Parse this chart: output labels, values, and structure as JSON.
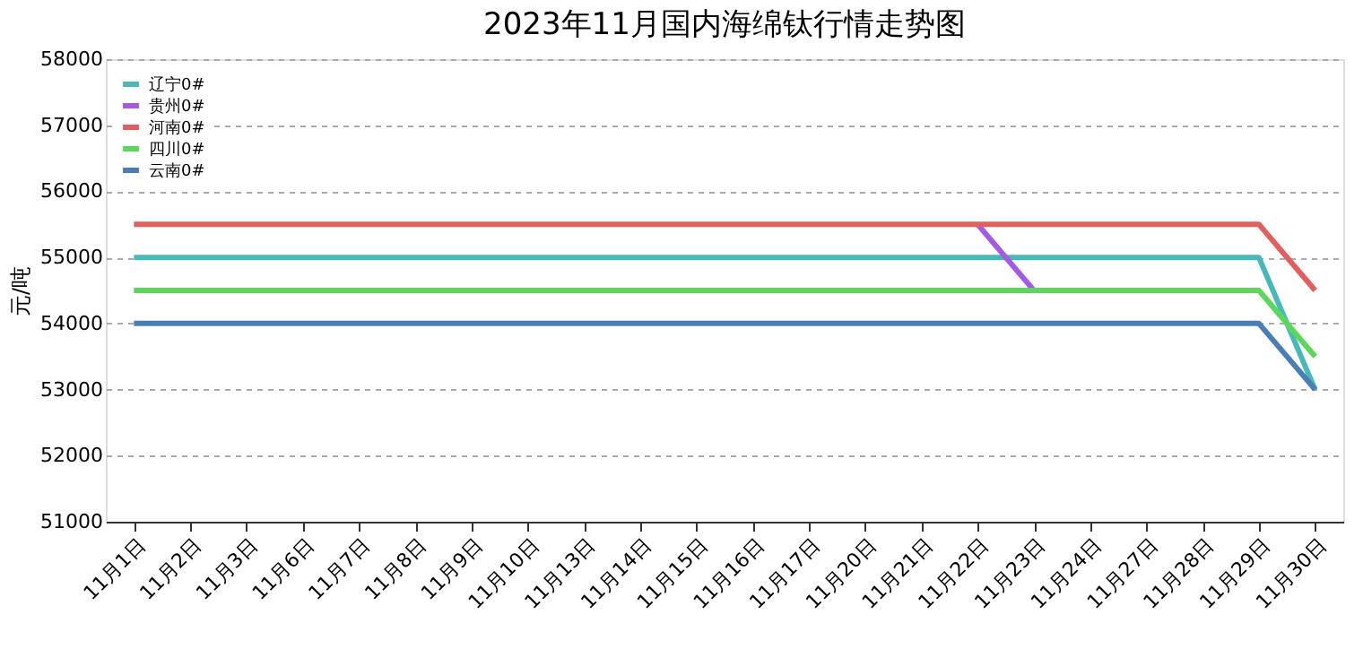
{
  "chart_data": {
    "type": "line",
    "title": "2023年11月国内海绵钛行情走势图",
    "ylabel": "元/吨",
    "categories": [
      "11月1日",
      "11月2日",
      "11月3日",
      "11月6日",
      "11月7日",
      "11月8日",
      "11月9日",
      "11月10日",
      "11月13日",
      "11月14日",
      "11月15日",
      "11月16日",
      "11月17日",
      "11月20日",
      "11月21日",
      "11月22日",
      "11月23日",
      "11月24日",
      "11月27日",
      "11月28日",
      "11月29日",
      "11月30日"
    ],
    "series": [
      {
        "name": "辽宁0#",
        "color": "#4bb8b8",
        "values": [
          55000,
          55000,
          55000,
          55000,
          55000,
          55000,
          55000,
          55000,
          55000,
          55000,
          55000,
          55000,
          55000,
          55000,
          55000,
          55000,
          55000,
          55000,
          55000,
          55000,
          55000,
          53000
        ]
      },
      {
        "name": "贵州0#",
        "color": "#a35ce0",
        "values": [
          null,
          null,
          null,
          null,
          null,
          null,
          null,
          null,
          null,
          null,
          null,
          null,
          null,
          null,
          null,
          55500,
          54500,
          null,
          null,
          null,
          null,
          null
        ]
      },
      {
        "name": "河南0#",
        "color": "#e06060",
        "values": [
          55500,
          55500,
          55500,
          55500,
          55500,
          55500,
          55500,
          55500,
          55500,
          55500,
          55500,
          55500,
          55500,
          55500,
          55500,
          55500,
          55500,
          55500,
          55500,
          55500,
          55500,
          54500
        ]
      },
      {
        "name": "四川0#",
        "color": "#5cd65c",
        "values": [
          54500,
          54500,
          54500,
          54500,
          54500,
          54500,
          54500,
          54500,
          54500,
          54500,
          54500,
          54500,
          54500,
          54500,
          54500,
          54500,
          54500,
          54500,
          54500,
          54500,
          54500,
          53500
        ]
      },
      {
        "name": "云南0#",
        "color": "#4a7fb5",
        "values": [
          54000,
          54000,
          54000,
          54000,
          54000,
          54000,
          54000,
          54000,
          54000,
          54000,
          54000,
          54000,
          54000,
          54000,
          54000,
          54000,
          54000,
          54000,
          54000,
          54000,
          54000,
          53000
        ]
      }
    ],
    "ylim": [
      51000,
      58000
    ],
    "yticks": [
      51000,
      52000,
      53000,
      54000,
      55000,
      56000,
      57000,
      58000
    ],
    "grid": "y",
    "legend": "top left",
    "marker": "none",
    "line_style": "solid"
  }
}
